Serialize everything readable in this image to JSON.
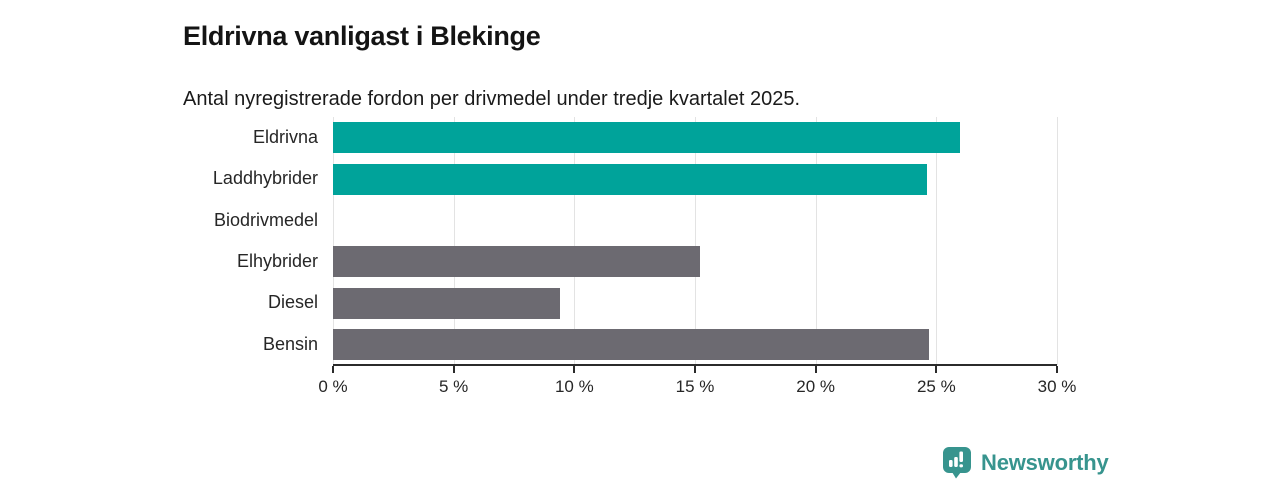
{
  "chart_data": {
    "type": "bar",
    "orientation": "horizontal",
    "title": "Eldrivna vanligast i Blekinge",
    "subtitle": "Antal nyregistrerade fordon per drivmedel under tredje kvartalet 2025.",
    "categories": [
      "Eldrivna",
      "Laddhybrider",
      "Biodrivmedel",
      "Elhybrider",
      "Diesel",
      "Bensin"
    ],
    "values": [
      26.0,
      24.6,
      0,
      15.2,
      9.4,
      24.7
    ],
    "unit": "%",
    "xlim": [
      0,
      30
    ],
    "x_ticks": [
      0,
      5,
      10,
      15,
      20,
      25,
      30
    ],
    "x_tick_labels": [
      "0 %",
      "5 %",
      "10 %",
      "15 %",
      "20 %",
      "25 %",
      "30 %"
    ],
    "bar_colors": [
      "#00a39a",
      "#00a39a",
      "#6c6a71",
      "#6c6a71",
      "#6c6a71",
      "#6c6a71"
    ],
    "grid": "vertical-only",
    "legend": "none"
  },
  "colors": {
    "highlight_teal": "#00a39a",
    "bar_gray": "#6c6a71",
    "gridline": "#e3e3e3",
    "axis": "#2b2b2b",
    "text": "#1a1a1a",
    "brand_teal": "#37948e"
  },
  "footer": {
    "brand": "Newsworthy"
  }
}
